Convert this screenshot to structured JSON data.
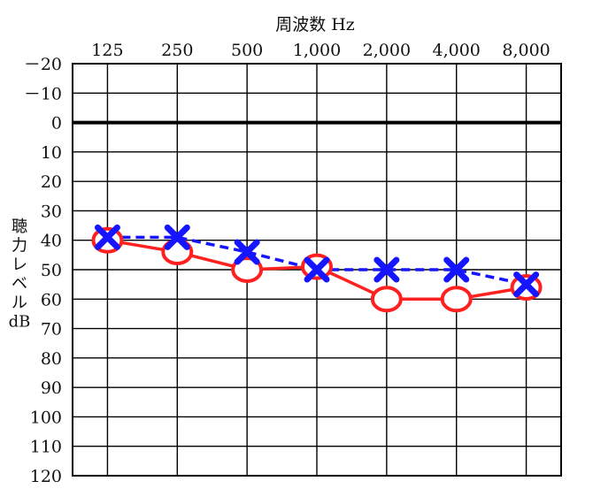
{
  "chart_data": {
    "type": "line",
    "xlabel": "周波数 Hz",
    "ylabel_lines": [
      "聴",
      "力",
      "レ",
      "ベ",
      "ル",
      "dB"
    ],
    "x_categories": [
      "125",
      "250",
      "500",
      "1,000",
      "2,000",
      "4,000",
      "8,000"
    ],
    "y_ticks": [
      "－20",
      "－10",
      "0",
      "10",
      "20",
      "30",
      "40",
      "50",
      "60",
      "70",
      "80",
      "90",
      "100",
      "110",
      "120"
    ],
    "ylim": [
      -20,
      120
    ],
    "y_inverted": true,
    "grid": true,
    "reference_line": 0,
    "series": [
      {
        "marker": "circle",
        "line_style": "solid",
        "color": "#ff2020",
        "values": [
          40,
          44,
          50,
          49,
          60,
          60,
          56
        ]
      },
      {
        "marker": "cross",
        "line_style": "dashed",
        "color": "#1515ff",
        "values": [
          39,
          39,
          44,
          50,
          50,
          50,
          55
        ]
      }
    ]
  }
}
